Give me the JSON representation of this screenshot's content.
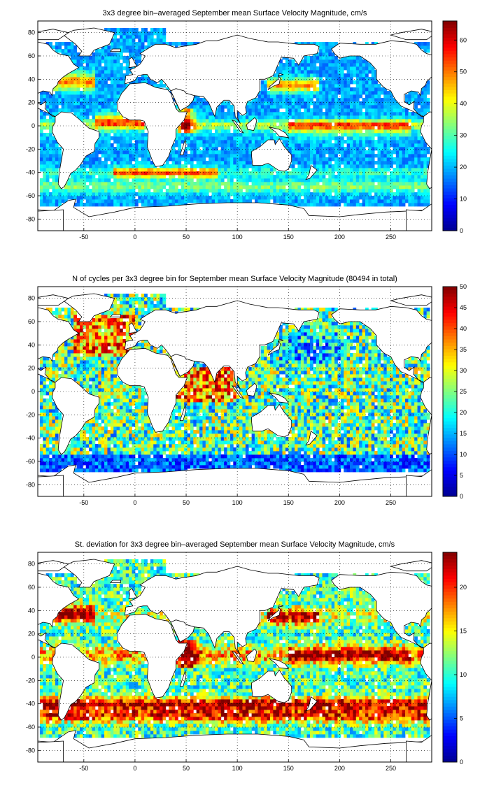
{
  "colormap": {
    "name": "jet",
    "stops": [
      "#00008f",
      "#0000ff",
      "#0080ff",
      "#00ffff",
      "#80ff80",
      "#ffff00",
      "#ff8000",
      "#ff0000",
      "#800000"
    ]
  },
  "land_color": "#ffffff",
  "coast_color": "#000000",
  "chart_data": [
    {
      "type": "heatmap",
      "title": "3x3 degree bin–averaged September mean Surface Velocity Magnitude, cm/s",
      "xlabel": "",
      "ylabel": "",
      "xlim": [
        -95,
        290
      ],
      "ylim": [
        -90,
        90
      ],
      "xticks": [
        -50,
        0,
        50,
        100,
        150,
        200,
        250
      ],
      "yticks": [
        -80,
        -60,
        -40,
        -20,
        0,
        20,
        40,
        60,
        80
      ],
      "grid": "dotted",
      "bin_size_deg": 3,
      "colorbar": {
        "min": 0,
        "max": 66,
        "ticks": [
          0,
          10,
          20,
          30,
          40,
          50,
          60
        ]
      },
      "field": "mean_speed"
    },
    {
      "type": "heatmap",
      "title": "N of cycles per 3x3 degree bin for September mean Surface Velocity Magnitude (80494 in total)",
      "xlabel": "",
      "ylabel": "",
      "xlim": [
        -95,
        290
      ],
      "ylim": [
        -90,
        90
      ],
      "xticks": [
        -50,
        0,
        50,
        100,
        150,
        200,
        250
      ],
      "yticks": [
        -80,
        -60,
        -40,
        -20,
        0,
        20,
        40,
        60,
        80
      ],
      "grid": "dotted",
      "bin_size_deg": 3,
      "total_cycles": 80494,
      "colorbar": {
        "min": 0,
        "max": 50,
        "ticks": [
          0,
          5,
          10,
          15,
          20,
          25,
          30,
          35,
          40,
          45,
          50
        ]
      },
      "field": "cycle_count"
    },
    {
      "type": "heatmap",
      "title": "St. deviation for 3x3 degree bin–averaged September mean Surface Velocity Magnitude, cm/s",
      "xlabel": "",
      "ylabel": "",
      "xlim": [
        -95,
        290
      ],
      "ylim": [
        -90,
        90
      ],
      "xticks": [
        -50,
        0,
        50,
        100,
        150,
        200,
        250
      ],
      "yticks": [
        -80,
        -60,
        -40,
        -20,
        0,
        20,
        40,
        60,
        80
      ],
      "grid": "dotted",
      "bin_size_deg": 3,
      "colorbar": {
        "min": 0,
        "max": 24,
        "ticks": [
          0,
          5,
          10,
          15,
          20
        ]
      },
      "field": "std_speed"
    }
  ]
}
